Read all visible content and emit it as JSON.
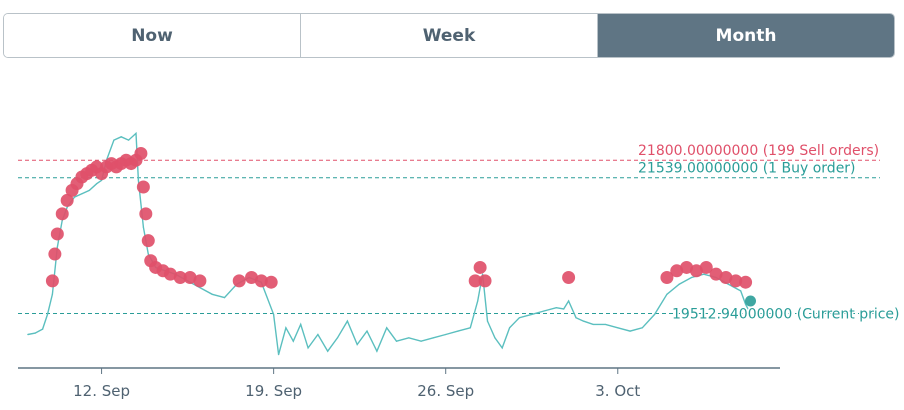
{
  "tabs": [
    {
      "label": "Now",
      "active": false
    },
    {
      "label": "Week",
      "active": false
    },
    {
      "label": "Month",
      "active": true
    }
  ],
  "colors": {
    "price_line": "#5bbfbf",
    "sell": "#e0506a",
    "buy": "#2a9d98",
    "current": "#2a9d98",
    "tab_active_bg": "#5f7584",
    "axis": "#5f7584"
  },
  "chart_data": {
    "type": "line",
    "x_ticks": [
      "12. Sep",
      "19. Sep",
      "26. Sep",
      "3. Oct"
    ],
    "price_series": [
      {
        "x": 9.0,
        "y": 19200
      },
      {
        "x": 9.3,
        "y": 19220
      },
      {
        "x": 9.6,
        "y": 19280
      },
      {
        "x": 9.8,
        "y": 19500
      },
      {
        "x": 10.0,
        "y": 19800
      },
      {
        "x": 10.2,
        "y": 20500
      },
      {
        "x": 10.4,
        "y": 20900
      },
      {
        "x": 10.6,
        "y": 21100
      },
      {
        "x": 10.9,
        "y": 21250
      },
      {
        "x": 11.2,
        "y": 21300
      },
      {
        "x": 11.5,
        "y": 21350
      },
      {
        "x": 11.8,
        "y": 21450
      },
      {
        "x": 12.0,
        "y": 21500
      },
      {
        "x": 12.2,
        "y": 21800
      },
      {
        "x": 12.5,
        "y": 22100
      },
      {
        "x": 12.8,
        "y": 22150
      },
      {
        "x": 13.1,
        "y": 22100
      },
      {
        "x": 13.4,
        "y": 22200
      },
      {
        "x": 13.5,
        "y": 21500
      },
      {
        "x": 13.7,
        "y": 20800
      },
      {
        "x": 13.9,
        "y": 20400
      },
      {
        "x": 14.2,
        "y": 20200
      },
      {
        "x": 14.6,
        "y": 20150
      },
      {
        "x": 15.0,
        "y": 20100
      },
      {
        "x": 15.5,
        "y": 20000
      },
      {
        "x": 16.0,
        "y": 19900
      },
      {
        "x": 16.5,
        "y": 19800
      },
      {
        "x": 17.0,
        "y": 19750
      },
      {
        "x": 17.5,
        "y": 19950
      },
      {
        "x": 18.0,
        "y": 20050
      },
      {
        "x": 18.5,
        "y": 19980
      },
      {
        "x": 19.0,
        "y": 19500
      },
      {
        "x": 19.2,
        "y": 18900
      },
      {
        "x": 19.5,
        "y": 19300
      },
      {
        "x": 19.8,
        "y": 19100
      },
      {
        "x": 20.1,
        "y": 19350
      },
      {
        "x": 20.4,
        "y": 19000
      },
      {
        "x": 20.8,
        "y": 19200
      },
      {
        "x": 21.2,
        "y": 18950
      },
      {
        "x": 21.6,
        "y": 19150
      },
      {
        "x": 22.0,
        "y": 19400
      },
      {
        "x": 22.4,
        "y": 19050
      },
      {
        "x": 22.8,
        "y": 19250
      },
      {
        "x": 23.2,
        "y": 18950
      },
      {
        "x": 23.6,
        "y": 19300
      },
      {
        "x": 24.0,
        "y": 19100
      },
      {
        "x": 24.5,
        "y": 19150
      },
      {
        "x": 25.0,
        "y": 19100
      },
      {
        "x": 25.5,
        "y": 19150
      },
      {
        "x": 26.0,
        "y": 19200
      },
      {
        "x": 26.5,
        "y": 19250
      },
      {
        "x": 27.0,
        "y": 19300
      },
      {
        "x": 27.3,
        "y": 19700
      },
      {
        "x": 27.5,
        "y": 20100
      },
      {
        "x": 27.7,
        "y": 19400
      },
      {
        "x": 28.0,
        "y": 19150
      },
      {
        "x": 28.3,
        "y": 19000
      },
      {
        "x": 28.6,
        "y": 19300
      },
      {
        "x": 29.0,
        "y": 19450
      },
      {
        "x": 29.5,
        "y": 19500
      },
      {
        "x": 30.0,
        "y": 19550
      },
      {
        "x": 30.5,
        "y": 19600
      },
      {
        "x": 30.8,
        "y": 19580
      },
      {
        "x": 31.0,
        "y": 19700
      },
      {
        "x": 31.3,
        "y": 19450
      },
      {
        "x": 31.6,
        "y": 19400
      },
      {
        "x": 32.0,
        "y": 19350
      },
      {
        "x": 32.5,
        "y": 19350
      },
      {
        "x": 33.0,
        "y": 19300
      },
      {
        "x": 33.5,
        "y": 19250
      },
      {
        "x": 34.0,
        "y": 19300
      },
      {
        "x": 34.5,
        "y": 19500
      },
      {
        "x": 35.0,
        "y": 19800
      },
      {
        "x": 35.5,
        "y": 19950
      },
      {
        "x": 36.0,
        "y": 20050
      },
      {
        "x": 36.5,
        "y": 20100
      },
      {
        "x": 37.0,
        "y": 20050
      },
      {
        "x": 37.5,
        "y": 19950
      },
      {
        "x": 38.0,
        "y": 19850
      },
      {
        "x": 38.2,
        "y": 19650
      },
      {
        "x": 38.4,
        "y": 19510
      }
    ],
    "sell_dots": [
      {
        "x": 10.0,
        "y": 20000
      },
      {
        "x": 10.1,
        "y": 20400
      },
      {
        "x": 10.2,
        "y": 20700
      },
      {
        "x": 10.4,
        "y": 21000
      },
      {
        "x": 10.6,
        "y": 21200
      },
      {
        "x": 10.8,
        "y": 21350
      },
      {
        "x": 11.0,
        "y": 21450
      },
      {
        "x": 11.2,
        "y": 21550
      },
      {
        "x": 11.4,
        "y": 21600
      },
      {
        "x": 11.6,
        "y": 21650
      },
      {
        "x": 11.8,
        "y": 21700
      },
      {
        "x": 12.0,
        "y": 21600
      },
      {
        "x": 12.2,
        "y": 21700
      },
      {
        "x": 12.4,
        "y": 21750
      },
      {
        "x": 12.6,
        "y": 21700
      },
      {
        "x": 12.8,
        "y": 21750
      },
      {
        "x": 13.0,
        "y": 21800
      },
      {
        "x": 13.2,
        "y": 21750
      },
      {
        "x": 13.4,
        "y": 21800
      },
      {
        "x": 13.6,
        "y": 21900
      },
      {
        "x": 13.7,
        "y": 21400
      },
      {
        "x": 13.8,
        "y": 21000
      },
      {
        "x": 13.9,
        "y": 20600
      },
      {
        "x": 14.0,
        "y": 20300
      },
      {
        "x": 14.2,
        "y": 20200
      },
      {
        "x": 14.5,
        "y": 20150
      },
      {
        "x": 14.8,
        "y": 20100
      },
      {
        "x": 15.2,
        "y": 20050
      },
      {
        "x": 15.6,
        "y": 20050
      },
      {
        "x": 16.0,
        "y": 20000
      },
      {
        "x": 17.6,
        "y": 20000
      },
      {
        "x": 18.1,
        "y": 20050
      },
      {
        "x": 18.5,
        "y": 20000
      },
      {
        "x": 18.9,
        "y": 19980
      },
      {
        "x": 27.2,
        "y": 20000
      },
      {
        "x": 27.4,
        "y": 20200
      },
      {
        "x": 27.6,
        "y": 20000
      },
      {
        "x": 31.0,
        "y": 20050
      },
      {
        "x": 35.0,
        "y": 20050
      },
      {
        "x": 35.4,
        "y": 20150
      },
      {
        "x": 35.8,
        "y": 20200
      },
      {
        "x": 36.2,
        "y": 20150
      },
      {
        "x": 36.6,
        "y": 20200
      },
      {
        "x": 37.0,
        "y": 20100
      },
      {
        "x": 37.4,
        "y": 20050
      },
      {
        "x": 37.8,
        "y": 20000
      },
      {
        "x": 38.2,
        "y": 19980
      }
    ],
    "buy_dots": [
      {
        "x": 38.4,
        "y": 19700
      }
    ],
    "levels": [
      {
        "name": "sell",
        "value": 21800,
        "label": "21800.00000000 (199 Sell orders)"
      },
      {
        "name": "buy",
        "value": 21539,
        "label": "21539.00000000 (1 Buy order)"
      },
      {
        "name": "current",
        "value": 19512.94,
        "label": "19512.94000000 (Current price)"
      }
    ],
    "xlim": [
      8.6,
      39.6
    ],
    "ylim": [
      18700,
      22400
    ],
    "grid": false,
    "legend": "none"
  }
}
